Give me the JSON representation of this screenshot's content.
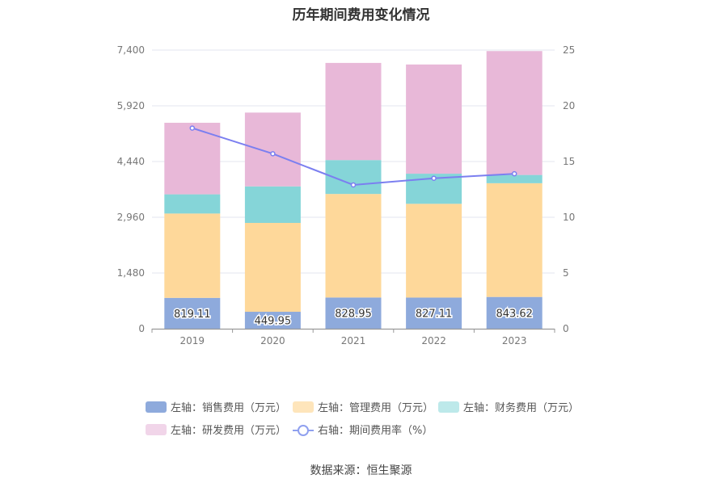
{
  "chart_data": {
    "type": "bar",
    "title": "历年期间费用变化情况",
    "categories": [
      "2019",
      "2020",
      "2021",
      "2022",
      "2023"
    ],
    "stacked": true,
    "series": [
      {
        "name": "左轴：销售费用（万元）",
        "axis": "left",
        "color": "#8eaadc",
        "values": [
          819.11,
          449.95,
          828.95,
          827.11,
          843.62
        ]
      },
      {
        "name": "左轴：管理费用（万元）",
        "axis": "left",
        "color": "#fed89a",
        "values": [
          2240,
          2360,
          2750,
          2490,
          3020
        ]
      },
      {
        "name": "左轴：财务费用（万元）",
        "axis": "left",
        "color": "#85d5d8",
        "values": [
          510,
          970,
          900,
          800,
          220
        ]
      },
      {
        "name": "左轴：研发费用（万元）",
        "axis": "left",
        "color": "#e8b8d8",
        "values": [
          1900,
          1960,
          2580,
          2900,
          3290
        ]
      }
    ],
    "line_series": {
      "name": "右轴：期间费用率（%）",
      "axis": "right",
      "color": "#7b7ff0",
      "values": [
        18.0,
        15.7,
        12.9,
        13.5,
        13.9
      ]
    },
    "data_labels": [
      "819.11",
      "449.95",
      "828.95",
      "827.11",
      "843.62"
    ],
    "left_axis": {
      "ticks": [
        0,
        1480,
        2960,
        4440,
        5920,
        7400
      ],
      "tick_labels": [
        "0",
        "1,480",
        "2,960",
        "4,440",
        "5,920",
        "7,400"
      ],
      "ylim": [
        0,
        7400
      ]
    },
    "right_axis": {
      "ticks": [
        0,
        5,
        10,
        15,
        20,
        25
      ],
      "tick_labels": [
        "0",
        "5",
        "10",
        "15",
        "20",
        "25"
      ],
      "ylim": [
        0,
        25
      ]
    }
  },
  "source": "数据来源：恒生聚源"
}
